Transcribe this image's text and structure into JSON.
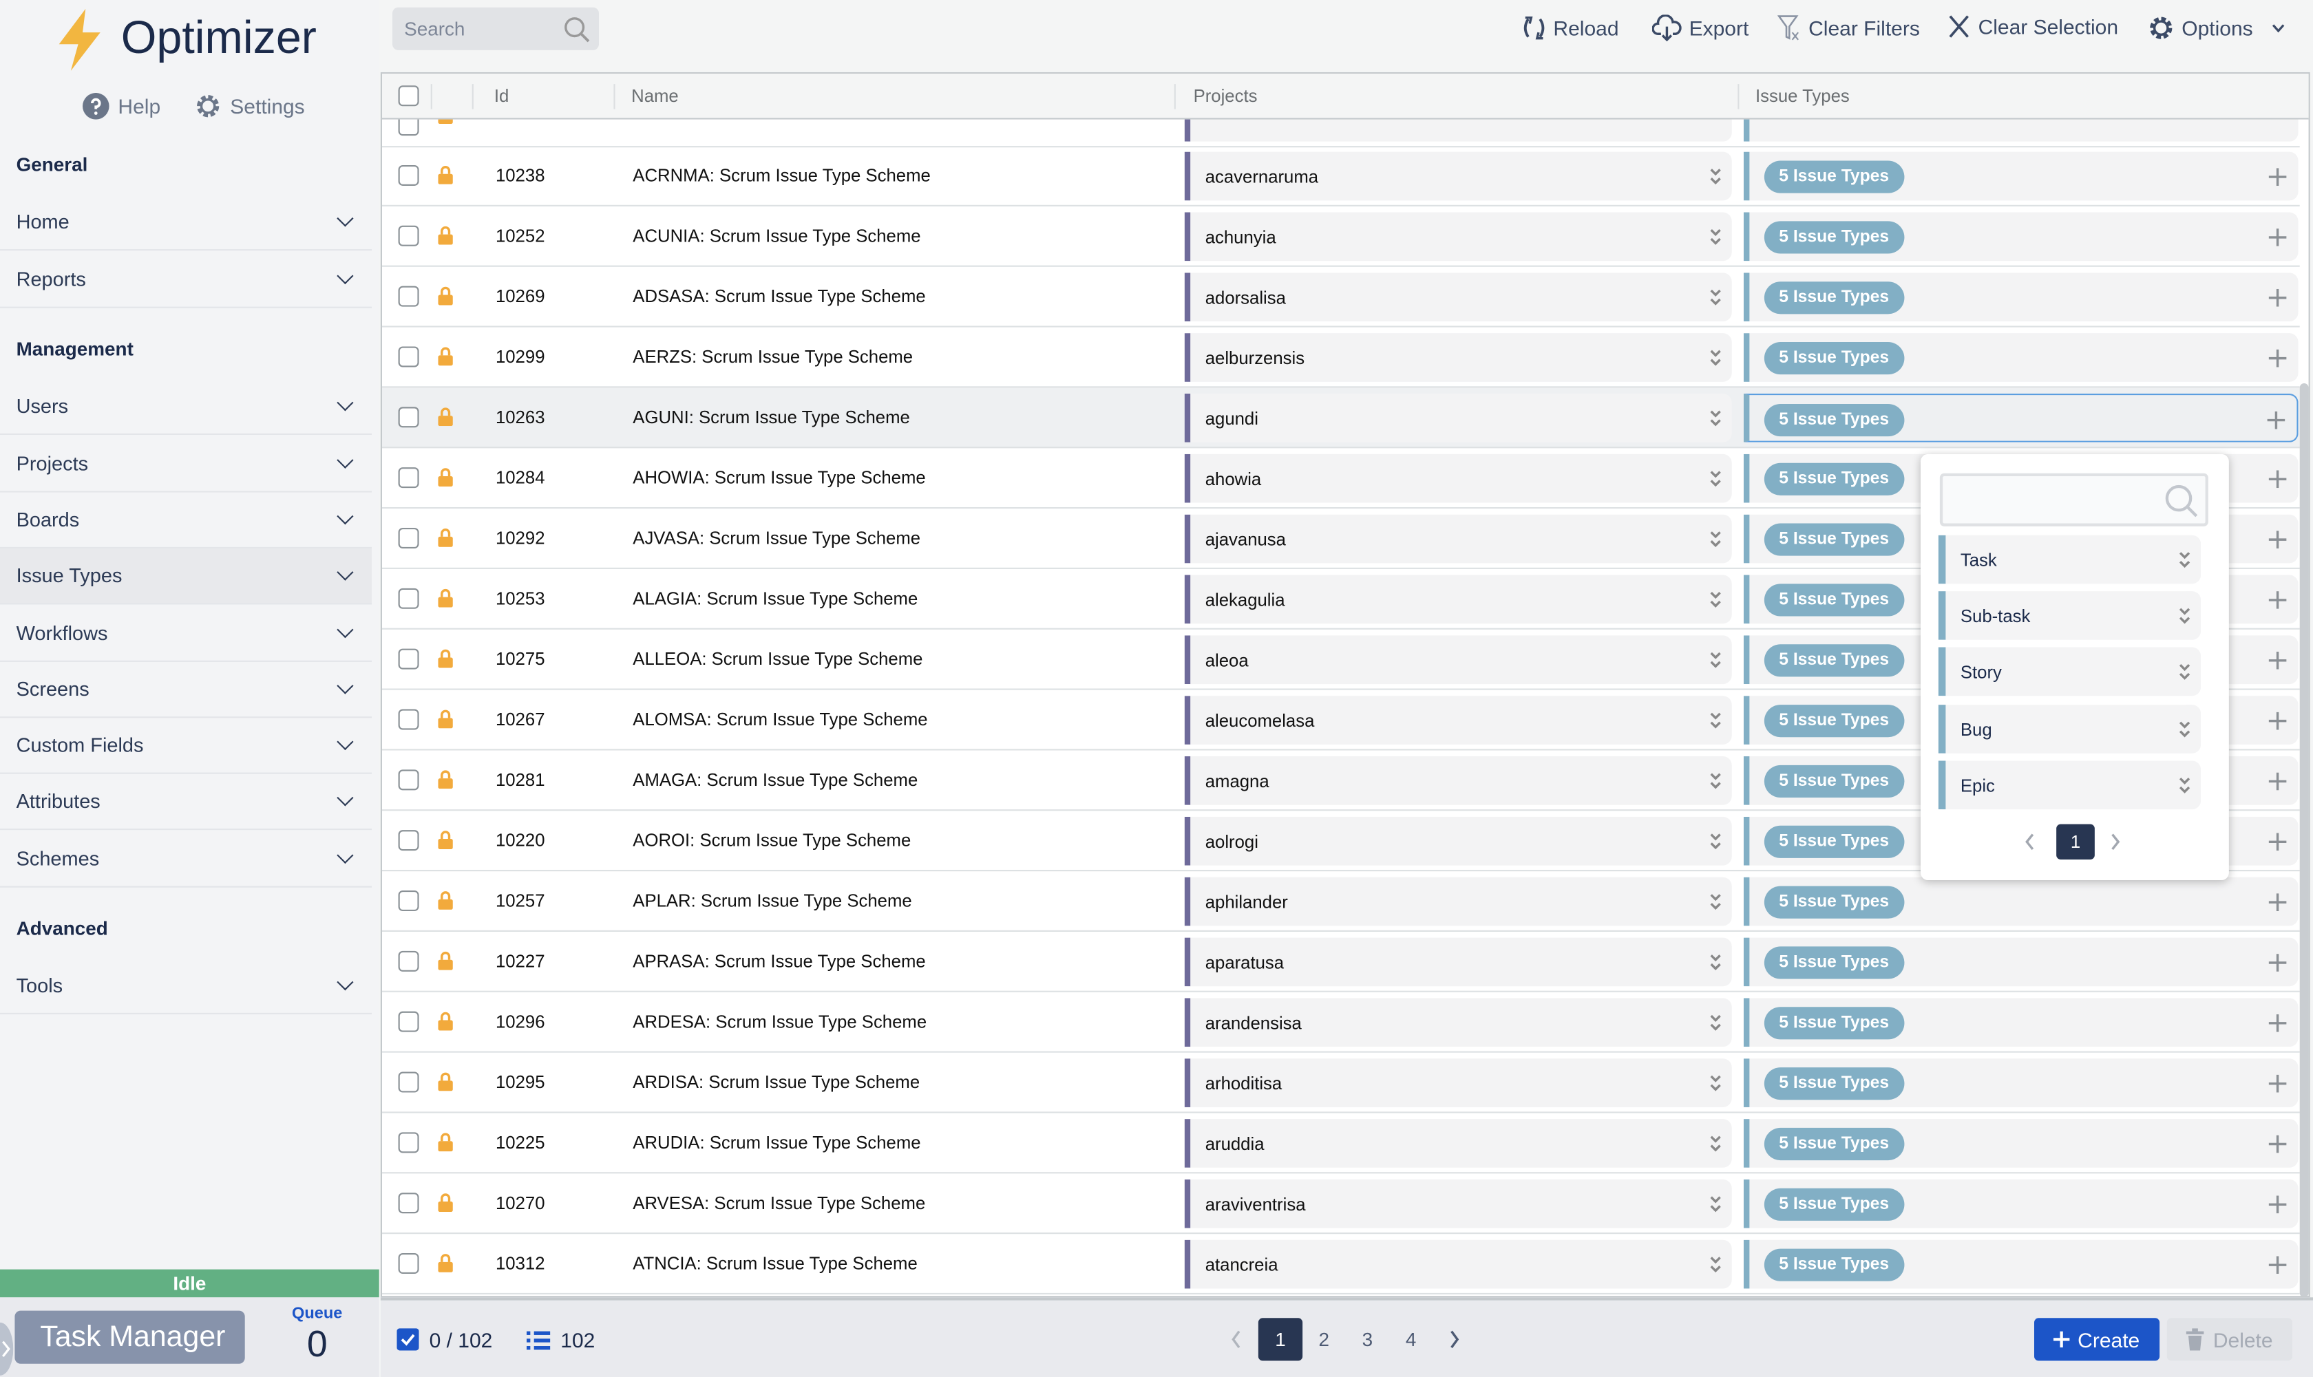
{
  "app": {
    "title": "Optimizer",
    "help": "Help",
    "settings": "Settings"
  },
  "sidebar": {
    "sections": [
      {
        "title": "General",
        "items": [
          "Home",
          "Reports"
        ]
      },
      {
        "title": "Management",
        "items": [
          "Users",
          "Projects",
          "Boards",
          "Issue Types",
          "Workflows",
          "Screens",
          "Custom Fields",
          "Attributes",
          "Schemes"
        ]
      },
      {
        "title": "Advanced",
        "items": [
          "Tools"
        ]
      }
    ],
    "active": "Issue Types",
    "status": "Idle",
    "task_manager": "Task Manager",
    "queue_label": "Queue",
    "queue_count": "0"
  },
  "toolbar": {
    "search_placeholder": "Search",
    "reload": "Reload",
    "export": "Export",
    "clear_filters": "Clear Filters",
    "clear_selection": "Clear Selection",
    "options": "Options"
  },
  "table": {
    "columns": [
      "Id",
      "Name",
      "Projects",
      "Issue Types"
    ],
    "badge": "5 Issue Types",
    "rows": [
      {
        "id": "10238",
        "name": "ACRNMA: Scrum Issue Type Scheme",
        "project": "acavernaruma"
      },
      {
        "id": "10252",
        "name": "ACUNIA: Scrum Issue Type Scheme",
        "project": "achunyia"
      },
      {
        "id": "10269",
        "name": "ADSASA: Scrum Issue Type Scheme",
        "project": "adorsalisa"
      },
      {
        "id": "10299",
        "name": "AERZS: Scrum Issue Type Scheme",
        "project": "aelburzensis"
      },
      {
        "id": "10263",
        "name": "AGUNI: Scrum Issue Type Scheme",
        "project": "agundi",
        "selected": true
      },
      {
        "id": "10284",
        "name": "AHOWIA: Scrum Issue Type Scheme",
        "project": "ahowia"
      },
      {
        "id": "10292",
        "name": "AJVASA: Scrum Issue Type Scheme",
        "project": "ajavanusa"
      },
      {
        "id": "10253",
        "name": "ALAGIA: Scrum Issue Type Scheme",
        "project": "alekagulia"
      },
      {
        "id": "10275",
        "name": "ALLEOA: Scrum Issue Type Scheme",
        "project": "aleoa"
      },
      {
        "id": "10267",
        "name": "ALOMSA: Scrum Issue Type Scheme",
        "project": "aleucomelasa"
      },
      {
        "id": "10281",
        "name": "AMAGA: Scrum Issue Type Scheme",
        "project": "amagna"
      },
      {
        "id": "10220",
        "name": "AOROI: Scrum Issue Type Scheme",
        "project": "aolrogi"
      },
      {
        "id": "10257",
        "name": "APLAR: Scrum Issue Type Scheme",
        "project": "aphilander"
      },
      {
        "id": "10227",
        "name": "APRASA: Scrum Issue Type Scheme",
        "project": "aparatusa"
      },
      {
        "id": "10296",
        "name": "ARDESA: Scrum Issue Type Scheme",
        "project": "arandensisa"
      },
      {
        "id": "10295",
        "name": "ARDISA: Scrum Issue Type Scheme",
        "project": "arhoditisa"
      },
      {
        "id": "10225",
        "name": "ARUDIA: Scrum Issue Type Scheme",
        "project": "aruddia"
      },
      {
        "id": "10270",
        "name": "ARVESA: Scrum Issue Type Scheme",
        "project": "araviventrisa"
      },
      {
        "id": "10312",
        "name": "ATNCIA: Scrum Issue Type Scheme",
        "project": "atancreia"
      }
    ]
  },
  "popup": {
    "items": [
      "Task",
      "Sub-task",
      "Story",
      "Bug",
      "Epic"
    ],
    "page": "1"
  },
  "footer": {
    "selected": "0 / 102",
    "total": "102",
    "pages": [
      "1",
      "2",
      "3",
      "4"
    ],
    "current_page": "1",
    "create": "Create",
    "delete": "Delete"
  },
  "colors": {
    "accent": "#1c55c8",
    "idle": "#62b083",
    "badge": "#82afc5",
    "project_bar": "#6e6a9a",
    "lock": "#f2aa3c"
  }
}
